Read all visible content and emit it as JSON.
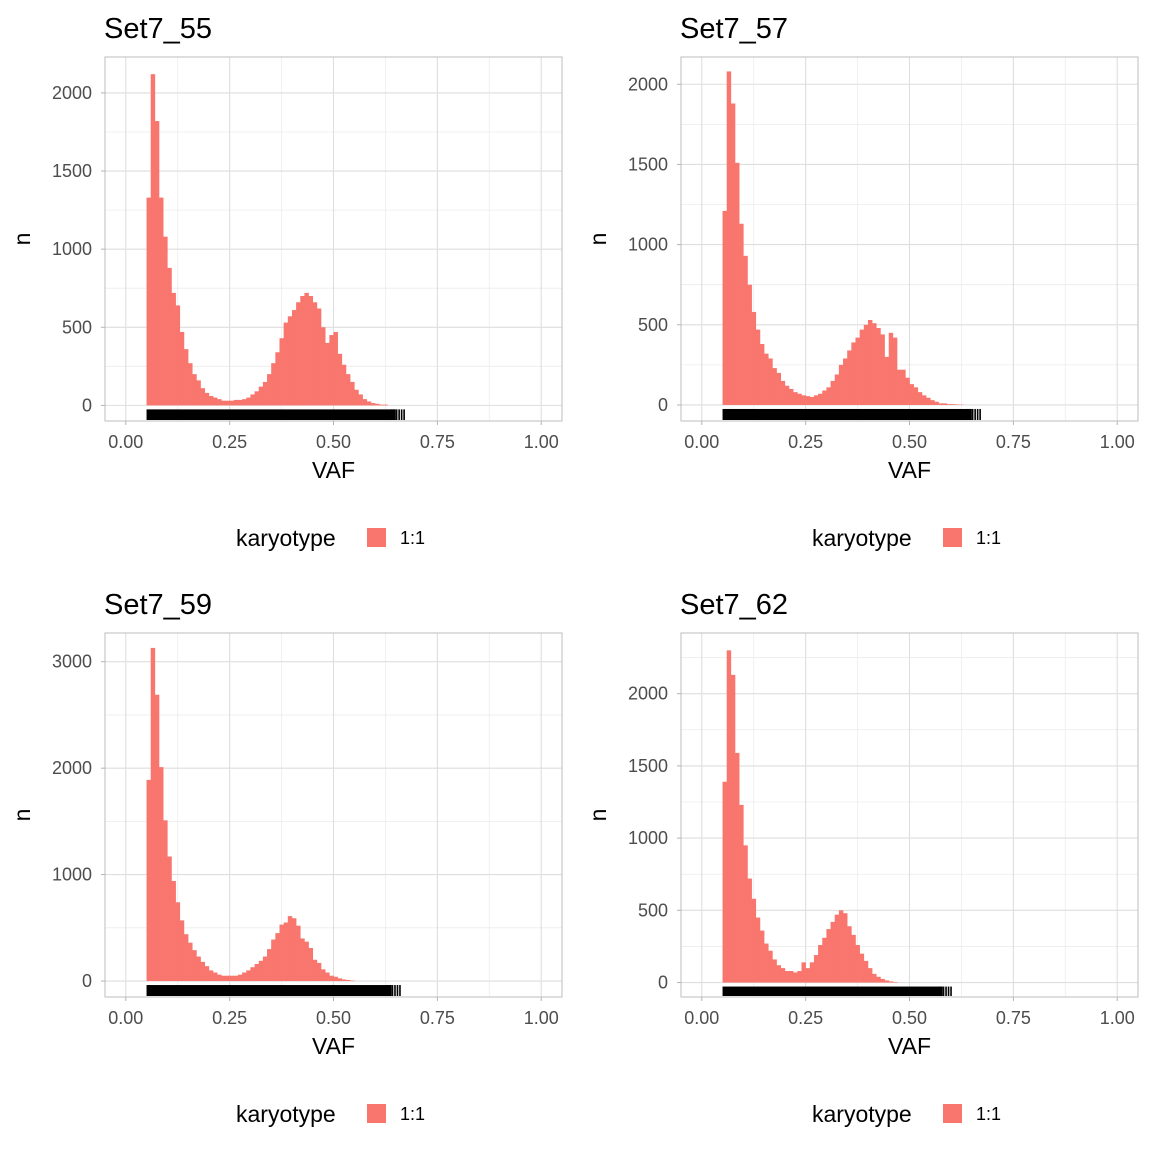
{
  "colors": {
    "bar": "#F8766D",
    "rug": "#000000",
    "grid": "#dedede",
    "panel_border": "#c8c8c8"
  },
  "chart_data": [
    {
      "type": "bar",
      "title": "Set7_55",
      "xlabel": "VAF",
      "ylabel": "n",
      "xlim": [
        -0.05,
        1.05
      ],
      "ylim": [
        -100,
        2230
      ],
      "xticks": [
        "0.00",
        "0.25",
        "0.50",
        "0.75",
        "1.00"
      ],
      "xtick_values": [
        0,
        0.25,
        0.5,
        0.75,
        1
      ],
      "yticks": [
        "0",
        "500",
        "1000",
        "1500",
        "2000"
      ],
      "ytick_values": [
        0,
        500,
        1000,
        1500,
        2000
      ],
      "bin_width": 0.01,
      "bin_start": 0.05,
      "values": [
        1330,
        2120,
        1820,
        1330,
        1080,
        880,
        720,
        640,
        470,
        360,
        270,
        200,
        160,
        110,
        80,
        60,
        50,
        40,
        30,
        30,
        30,
        35,
        35,
        40,
        50,
        70,
        90,
        120,
        150,
        200,
        270,
        340,
        430,
        530,
        570,
        610,
        660,
        700,
        720,
        700,
        660,
        620,
        500,
        400,
        450,
        470,
        330,
        260,
        200,
        150,
        100,
        70,
        40,
        25,
        15,
        10,
        5,
        5
      ],
      "rug_end": 0.67,
      "legend": {
        "title": "karyotype",
        "labels": [
          "1:1"
        ]
      }
    },
    {
      "type": "bar",
      "title": "Set7_57",
      "xlabel": "VAF",
      "ylabel": "n",
      "xlim": [
        -0.05,
        1.05
      ],
      "ylim": [
        -100,
        2170
      ],
      "xticks": [
        "0.00",
        "0.25",
        "0.50",
        "0.75",
        "1.00"
      ],
      "xtick_values": [
        0,
        0.25,
        0.5,
        0.75,
        1
      ],
      "yticks": [
        "0",
        "500",
        "1000",
        "1500",
        "2000"
      ],
      "ytick_values": [
        0,
        500,
        1000,
        1500,
        2000
      ],
      "bin_width": 0.01,
      "bin_start": 0.05,
      "values": [
        1210,
        2080,
        1880,
        1510,
        1130,
        930,
        750,
        580,
        470,
        380,
        320,
        290,
        230,
        200,
        150,
        120,
        100,
        80,
        70,
        60,
        55,
        50,
        60,
        70,
        90,
        110,
        150,
        190,
        250,
        290,
        340,
        390,
        420,
        470,
        500,
        530,
        510,
        480,
        440,
        300,
        450,
        420,
        220,
        220,
        170,
        130,
        110,
        80,
        60,
        45,
        30,
        20,
        10,
        10,
        5,
        5,
        3,
        2
      ],
      "rug_end": 0.67,
      "legend": {
        "title": "karyotype",
        "labels": [
          "1:1"
        ]
      }
    },
    {
      "type": "bar",
      "title": "Set7_59",
      "xlabel": "VAF",
      "ylabel": "n",
      "xlim": [
        -0.05,
        1.05
      ],
      "ylim": [
        -150,
        3270
      ],
      "xticks": [
        "0.00",
        "0.25",
        "0.50",
        "0.75",
        "1.00"
      ],
      "xtick_values": [
        0,
        0.25,
        0.5,
        0.75,
        1
      ],
      "yticks": [
        "0",
        "1000",
        "2000",
        "3000"
      ],
      "ytick_values": [
        0,
        1000,
        2000,
        3000
      ],
      "bin_width": 0.01,
      "bin_start": 0.05,
      "values": [
        1890,
        3130,
        2690,
        2010,
        1510,
        1170,
        940,
        740,
        570,
        440,
        360,
        290,
        230,
        180,
        140,
        100,
        80,
        60,
        50,
        50,
        50,
        50,
        60,
        80,
        100,
        130,
        160,
        190,
        230,
        300,
        390,
        450,
        530,
        550,
        610,
        590,
        520,
        400,
        370,
        310,
        200,
        170,
        110,
        80,
        50,
        40,
        25,
        15,
        10,
        5
      ],
      "rug_end": 0.66,
      "legend": {
        "title": "karyotype",
        "labels": [
          "1:1"
        ]
      }
    },
    {
      "type": "bar",
      "title": "Set7_62",
      "xlabel": "VAF",
      "ylabel": "n",
      "xlim": [
        -0.05,
        1.05
      ],
      "ylim": [
        -100,
        2420
      ],
      "xticks": [
        "0.00",
        "0.25",
        "0.50",
        "0.75",
        "1.00"
      ],
      "xtick_values": [
        0,
        0.25,
        0.5,
        0.75,
        1
      ],
      "yticks": [
        "0",
        "500",
        "1000",
        "1500",
        "2000"
      ],
      "ytick_values": [
        0,
        500,
        1000,
        1500,
        2000
      ],
      "bin_width": 0.01,
      "bin_start": 0.05,
      "values": [
        1390,
        2300,
        2130,
        1590,
        1230,
        950,
        720,
        580,
        450,
        360,
        270,
        220,
        160,
        120,
        100,
        80,
        80,
        70,
        80,
        140,
        100,
        140,
        190,
        260,
        310,
        370,
        420,
        470,
        500,
        480,
        390,
        330,
        260,
        200,
        150,
        100,
        60,
        40,
        25,
        15,
        8,
        4
      ],
      "rug_end": 0.6,
      "legend": {
        "title": "karyotype",
        "labels": [
          "1:1"
        ]
      }
    }
  ]
}
